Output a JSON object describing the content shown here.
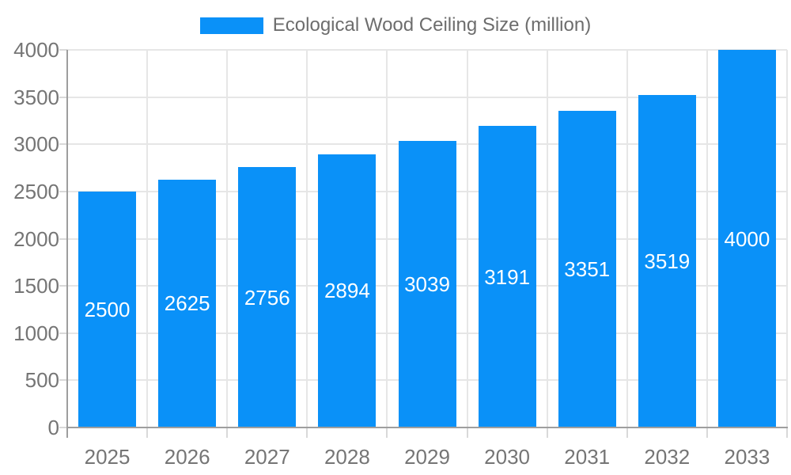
{
  "legend": {
    "label": "Ecological Wood Ceiling Size (million)"
  },
  "chart_data": {
    "type": "bar",
    "title": "Ecological Wood Ceiling Size (million)",
    "series_name": "Ecological Wood Ceiling Size (million)",
    "categories": [
      "2025",
      "2026",
      "2027",
      "2028",
      "2029",
      "2030",
      "2031",
      "2032",
      "2033"
    ],
    "values": [
      2500,
      2625,
      2756,
      2894,
      3039,
      3191,
      3351,
      3519,
      4000
    ],
    "value_labels": [
      "2500",
      "2625",
      "2756",
      "2894",
      "3039",
      "3191",
      "3351",
      "3519",
      "4000"
    ],
    "ytick_labels": [
      "0",
      "500",
      "1000",
      "1500",
      "2000",
      "2500",
      "3000",
      "3500",
      "4000"
    ],
    "xlabel": "",
    "ylabel": "",
    "ylim": [
      0,
      4000
    ],
    "ytick_step": 500,
    "grid": true,
    "legend_position": "top-center",
    "colors": {
      "bar": "#0a91f8",
      "value_label": "#ffffff",
      "axis_label": "#757575",
      "legend_text": "#6d6d6d",
      "gridline": "#e6e6e6",
      "axis_line": "#9e9e9e",
      "tick": "#d9d9d9",
      "background": "#ffffff"
    }
  }
}
